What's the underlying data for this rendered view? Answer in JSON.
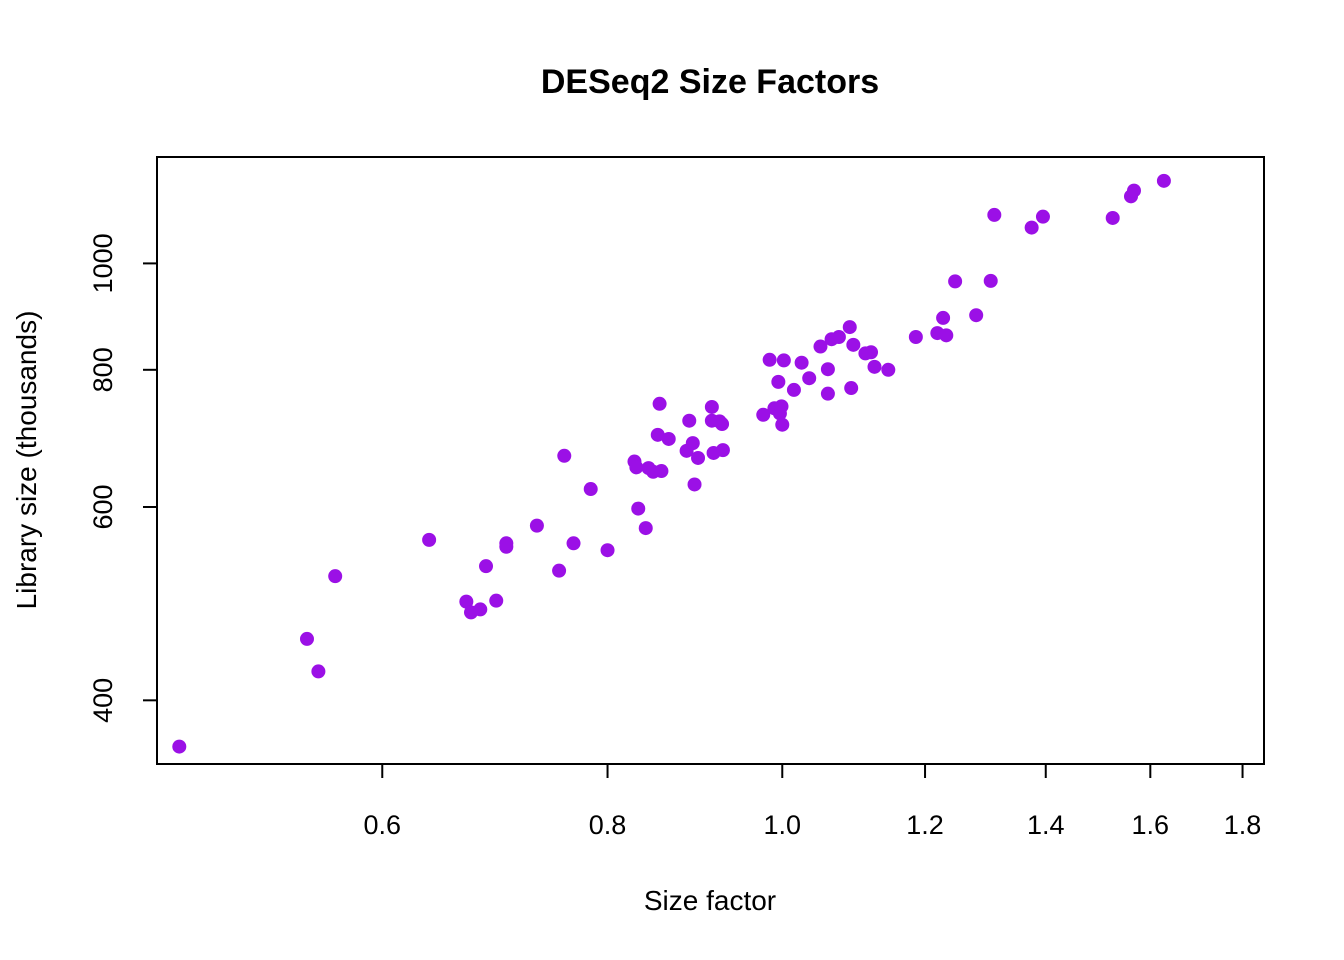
{
  "chart_data": {
    "type": "scatter",
    "title": "DESeq2 Size Factors",
    "xlabel": "Size factor",
    "ylabel": "Library size (thousands)",
    "x_scale": "log",
    "y_scale": "log",
    "xlim": [
      0.45,
      1.85
    ],
    "ylim": [
      350,
      1250
    ],
    "x_ticks": [
      0.6,
      0.8,
      1.0,
      1.2,
      1.4,
      1.6,
      1.8
    ],
    "x_tick_labels": [
      "0.6",
      "0.8",
      "1.0",
      "1.2",
      "1.4",
      "1.6",
      "1.8"
    ],
    "y_ticks": [
      400,
      600,
      800,
      1000
    ],
    "y_tick_labels": [
      "400",
      "600",
      "800",
      "1000"
    ],
    "grid": false,
    "legend": "none",
    "point_color": "#9b10e6",
    "series": [
      {
        "points": [
          [
            0.463,
            363
          ],
          [
            0.545,
            455
          ],
          [
            0.553,
            425
          ],
          [
            0.565,
            519
          ],
          [
            0.637,
            560
          ],
          [
            0.668,
            492
          ],
          [
            0.672,
            481
          ],
          [
            0.68,
            484
          ],
          [
            0.685,
            530
          ],
          [
            0.694,
            493
          ],
          [
            0.703,
            552
          ],
          [
            0.703,
            556
          ],
          [
            0.731,
            577
          ],
          [
            0.752,
            525
          ],
          [
            0.757,
            668
          ],
          [
            0.766,
            556
          ],
          [
            0.783,
            623
          ],
          [
            0.8,
            548
          ],
          [
            0.828,
            660
          ],
          [
            0.83,
            652
          ],
          [
            0.832,
            598
          ],
          [
            0.84,
            574
          ],
          [
            0.843,
            651
          ],
          [
            0.848,
            646
          ],
          [
            0.853,
            698
          ],
          [
            0.855,
            745
          ],
          [
            0.857,
            647
          ],
          [
            0.865,
            692
          ],
          [
            0.885,
            675
          ],
          [
            0.888,
            719
          ],
          [
            0.892,
            686
          ],
          [
            0.894,
            629
          ],
          [
            0.898,
            665
          ],
          [
            0.914,
            740
          ],
          [
            0.914,
            719
          ],
          [
            0.916,
            672
          ],
          [
            0.923,
            718
          ],
          [
            0.926,
            714
          ],
          [
            0.927,
            676
          ],
          [
            0.976,
            728
          ],
          [
            0.984,
            817
          ],
          [
            0.99,
            738
          ],
          [
            0.995,
            780
          ],
          [
            0.997,
            730
          ],
          [
            0.999,
            741
          ],
          [
            1.0,
            713
          ],
          [
            1.002,
            816
          ],
          [
            1.015,
            767
          ],
          [
            1.025,
            812
          ],
          [
            1.035,
            786
          ],
          [
            1.05,
            840
          ],
          [
            1.06,
            761
          ],
          [
            1.06,
            801
          ],
          [
            1.065,
            853
          ],
          [
            1.075,
            857
          ],
          [
            1.09,
            875
          ],
          [
            1.092,
            770
          ],
          [
            1.095,
            843
          ],
          [
            1.112,
            828
          ],
          [
            1.12,
            830
          ],
          [
            1.125,
            805
          ],
          [
            1.145,
            800
          ],
          [
            1.186,
            857
          ],
          [
            1.219,
            864
          ],
          [
            1.228,
            892
          ],
          [
            1.233,
            860
          ],
          [
            1.247,
            963
          ],
          [
            1.281,
            897
          ],
          [
            1.305,
            964
          ],
          [
            1.311,
            1107
          ],
          [
            1.375,
            1078
          ],
          [
            1.395,
            1103
          ],
          [
            1.525,
            1100
          ],
          [
            1.561,
            1151
          ],
          [
            1.567,
            1165
          ],
          [
            1.628,
            1189
          ]
        ]
      }
    ]
  }
}
